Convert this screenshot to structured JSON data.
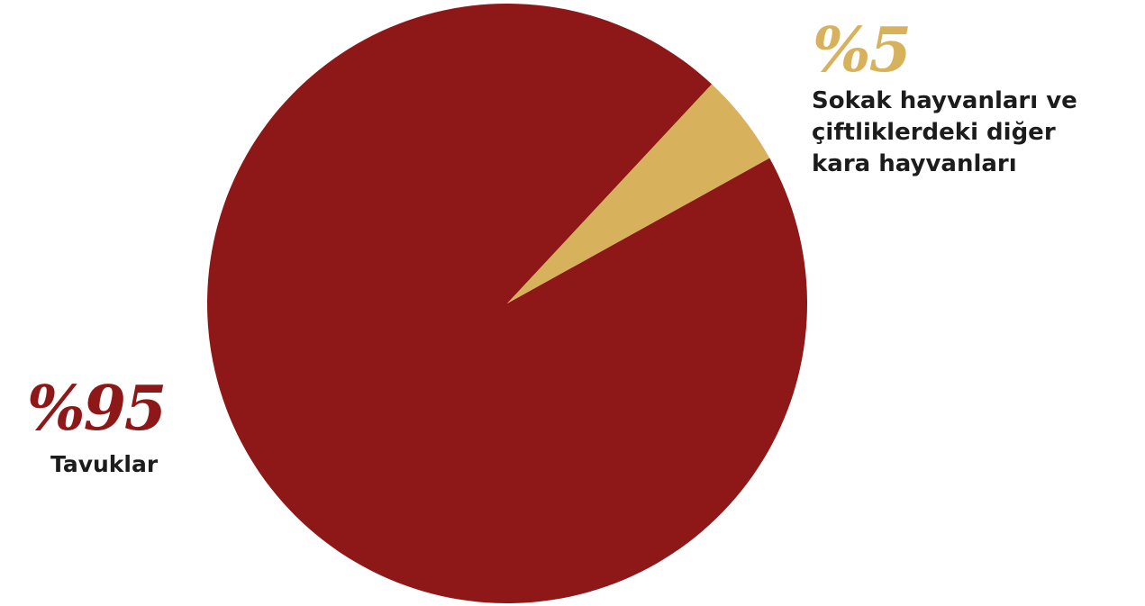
{
  "chart_data": {
    "type": "pie",
    "slices": [
      {
        "label_lines": [
          "Tavuklar"
        ],
        "value": 95,
        "display_value": "%95",
        "color": "#8e1718"
      },
      {
        "label_lines": [
          "Sokak hayvanları ve",
          "çiftliklerdeki diğer",
          "kara hayvanları"
        ],
        "value": 5,
        "display_value": "%5",
        "color": "#d8b15d"
      }
    ]
  }
}
